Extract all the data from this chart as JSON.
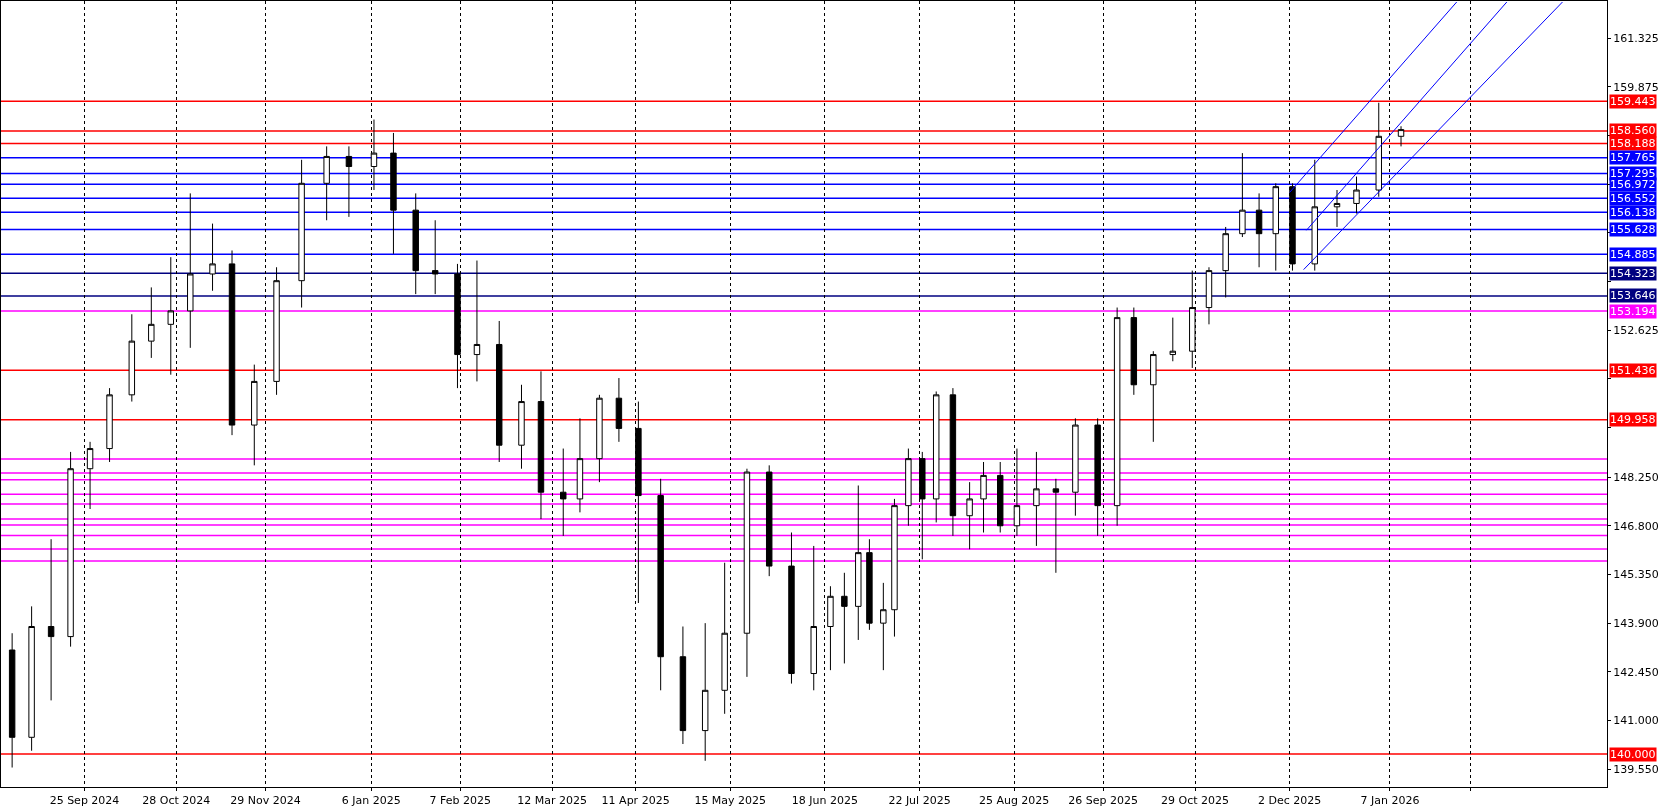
{
  "chart_data": {
    "type": "candlestick",
    "x": [
      "2024-08-30",
      "2024-09-06",
      "2024-09-13",
      "2024-09-20",
      "2024-09-27",
      "2024-10-04",
      "2024-10-12",
      "2024-10-19",
      "2024-10-26",
      "2024-11-02",
      "2024-11-10",
      "2024-11-17",
      "2024-11-25",
      "2024-12-03",
      "2024-12-12",
      "2024-12-21",
      "2024-12-29",
      "2025-01-07",
      "2025-01-14",
      "2025-01-22",
      "2025-01-29",
      "2025-02-06",
      "2025-02-13",
      "2025-02-21",
      "2025-03-01",
      "2025-03-08",
      "2025-03-16",
      "2025-03-22",
      "2025-03-29",
      "2025-04-05",
      "2025-04-12",
      "2025-04-20",
      "2025-04-28",
      "2025-05-06",
      "2025-05-13",
      "2025-05-21",
      "2025-05-29",
      "2025-06-06",
      "2025-06-14",
      "2025-06-20",
      "2025-06-25",
      "2025-06-30",
      "2025-07-04",
      "2025-07-09",
      "2025-07-13",
      "2025-07-18",
      "2025-07-23",
      "2025-07-28",
      "2025-08-03",
      "2025-08-09",
      "2025-08-14",
      "2025-08-20",
      "2025-08-26",
      "2025-09-02",
      "2025-09-09",
      "2025-09-16",
      "2025-09-24",
      "2025-10-01",
      "2025-10-07",
      "2025-10-14",
      "2025-10-21",
      "2025-10-28",
      "2025-11-03",
      "2025-11-09",
      "2025-11-15",
      "2025-11-21",
      "2025-11-27",
      "2025-12-03",
      "2025-12-11",
      "2025-12-19",
      "2025-12-26",
      "2026-01-03",
      "2026-01-11"
    ],
    "ohlc": [
      [
        143.1,
        143.6,
        139.6,
        140.5
      ],
      [
        140.5,
        144.4,
        140.1,
        143.8
      ],
      [
        143.8,
        146.4,
        141.6,
        143.5
      ],
      [
        143.5,
        149.0,
        143.2,
        148.5
      ],
      [
        148.5,
        149.3,
        147.3,
        149.1
      ],
      [
        149.1,
        150.9,
        148.7,
        150.7
      ],
      [
        150.7,
        153.1,
        150.5,
        152.3
      ],
      [
        152.3,
        153.9,
        151.8,
        152.8
      ],
      [
        152.8,
        154.8,
        151.3,
        153.2
      ],
      [
        153.2,
        156.7,
        152.1,
        154.3
      ],
      [
        154.3,
        155.8,
        153.8,
        154.6
      ],
      [
        154.6,
        155.0,
        149.5,
        149.8
      ],
      [
        149.8,
        151.6,
        148.6,
        151.1
      ],
      [
        151.1,
        154.5,
        150.7,
        154.1
      ],
      [
        154.1,
        157.7,
        153.3,
        157.0
      ],
      [
        157.0,
        158.1,
        155.9,
        157.8
      ],
      [
        157.8,
        158.1,
        156.0,
        157.5
      ],
      [
        157.5,
        158.9,
        156.8,
        157.9
      ],
      [
        157.9,
        158.5,
        154.9,
        156.2
      ],
      [
        156.2,
        156.7,
        153.7,
        154.4
      ],
      [
        154.4,
        155.9,
        153.7,
        154.3
      ],
      [
        154.3,
        154.6,
        150.9,
        151.9
      ],
      [
        151.9,
        154.7,
        151.1,
        152.2
      ],
      [
        152.2,
        152.9,
        148.7,
        149.2
      ],
      [
        149.2,
        151.0,
        148.5,
        150.5
      ],
      [
        150.5,
        151.4,
        147.0,
        147.8
      ],
      [
        147.8,
        149.1,
        146.5,
        147.6
      ],
      [
        147.6,
        150.0,
        147.2,
        148.8
      ],
      [
        148.8,
        150.7,
        148.1,
        150.6
      ],
      [
        150.6,
        151.2,
        149.3,
        149.7
      ],
      [
        149.7,
        150.5,
        144.5,
        147.7
      ],
      [
        147.7,
        148.2,
        141.9,
        142.9
      ],
      [
        142.9,
        143.8,
        140.3,
        140.7
      ],
      [
        140.7,
        143.9,
        139.8,
        141.9
      ],
      [
        141.9,
        145.7,
        141.2,
        143.6
      ],
      [
        143.6,
        148.5,
        142.3,
        148.4
      ],
      [
        148.4,
        148.6,
        145.3,
        145.6
      ],
      [
        145.6,
        146.6,
        142.1,
        142.4
      ],
      [
        142.4,
        146.2,
        141.9,
        143.8
      ],
      [
        143.8,
        145.0,
        142.5,
        144.7
      ],
      [
        144.7,
        145.4,
        142.7,
        144.4
      ],
      [
        144.4,
        148.0,
        143.4,
        146.0
      ],
      [
        146.0,
        146.4,
        143.7,
        143.9
      ],
      [
        143.9,
        145.1,
        142.5,
        144.3
      ],
      [
        144.3,
        147.6,
        143.5,
        147.4
      ],
      [
        147.4,
        149.1,
        146.8,
        148.8
      ],
      [
        148.8,
        149.0,
        145.8,
        147.6
      ],
      [
        147.6,
        150.8,
        146.9,
        150.7
      ],
      [
        150.7,
        150.9,
        146.5,
        147.1
      ],
      [
        147.1,
        148.1,
        146.1,
        147.6
      ],
      [
        147.6,
        148.7,
        146.6,
        148.3
      ],
      [
        148.3,
        148.7,
        146.6,
        146.8
      ],
      [
        146.8,
        149.1,
        146.5,
        147.4
      ],
      [
        147.4,
        149.0,
        146.2,
        147.9
      ],
      [
        147.9,
        148.2,
        145.4,
        147.8
      ],
      [
        147.8,
        150.0,
        147.1,
        149.8
      ],
      [
        149.8,
        150.0,
        146.5,
        147.4
      ],
      [
        147.4,
        153.3,
        146.8,
        153.0
      ],
      [
        153.0,
        153.3,
        150.7,
        151.0
      ],
      [
        151.0,
        152.0,
        149.3,
        151.9
      ],
      [
        151.9,
        153.0,
        151.7,
        152.0
      ],
      [
        152.0,
        154.4,
        151.5,
        153.3
      ],
      [
        153.3,
        154.5,
        152.8,
        154.4
      ],
      [
        154.4,
        155.7,
        153.6,
        155.5
      ],
      [
        155.5,
        157.9,
        155.4,
        156.2
      ],
      [
        156.2,
        156.7,
        154.5,
        155.5
      ],
      [
        155.5,
        157.0,
        154.4,
        156.9
      ],
      [
        156.9,
        157.0,
        154.4,
        154.6
      ],
      [
        154.6,
        157.7,
        154.4,
        156.3
      ],
      [
        156.3,
        156.8,
        155.7,
        156.4
      ],
      [
        156.4,
        157.2,
        156.1,
        156.8
      ],
      [
        156.8,
        159.4,
        156.6,
        158.4
      ],
      [
        158.4,
        158.7,
        158.1,
        158.6
      ]
    ],
    "series": [
      {
        "type": "line",
        "color": "#0000ff",
        "x": [
          "2025-12-02",
          "2026-01-31"
        ],
        "values": [
          156.73,
          162.4
        ]
      },
      {
        "type": "line",
        "color": "#0000ff",
        "x": [
          "2025-12-08",
          "2026-02-18"
        ],
        "values": [
          155.6,
          162.4
        ]
      },
      {
        "type": "line",
        "color": "#0000ff",
        "x": [
          "2025-12-07",
          "2026-03-10"
        ],
        "values": [
          154.43,
          162.4
        ]
      }
    ],
    "xlim": [
      "2024-08-26",
      "2026-03-26"
    ],
    "xticks": [
      {
        "value": "2024-09-25",
        "label": "25 Sep 2024"
      },
      {
        "value": "2024-10-28",
        "label": "28 Oct 2024"
      },
      {
        "value": "2024-11-29",
        "label": "29 Nov 2024"
      },
      {
        "value": "2025-01-06",
        "label": "6 Jan 2025"
      },
      {
        "value": "2025-02-07",
        "label": "7 Feb 2025"
      },
      {
        "value": "2025-03-12",
        "label": "12 Mar 2025"
      },
      {
        "value": "2025-04-11",
        "label": "11 Apr 2025"
      },
      {
        "value": "2025-05-15",
        "label": "15 May 2025"
      },
      {
        "value": "2025-06-18",
        "label": "18 Jun 2025"
      },
      {
        "value": "2025-07-22",
        "label": "22 Jul 2025"
      },
      {
        "value": "2025-08-25",
        "label": "25 Aug 2025"
      },
      {
        "value": "2025-09-26",
        "label": "26 Sep 2025"
      },
      {
        "value": "2025-10-29",
        "label": "29 Oct 2025"
      },
      {
        "value": "2025-12-02",
        "label": "2 Dec 2025"
      },
      {
        "value": "2026-01-07",
        "label": "7 Jan 2026"
      },
      {
        "value": "2026-02-05",
        "label": null
      }
    ],
    "ylim": [
      139.02,
      162.43
    ],
    "yticks": [
      161.325,
      159.875,
      {
        "value": 158.425,
        "label": null
      },
      {
        "value": 156.975,
        "label": null
      },
      {
        "value": 155.525,
        "label": null
      },
      {
        "value": 154.075,
        "label": null
      },
      152.625,
      {
        "value": 151.175,
        "label": null
      },
      {
        "value": 149.725,
        "label": null
      },
      {
        "value": 148.25,
        "label": "148.250"
      },
      {
        "value": 146.8,
        "label": "146.800"
      },
      {
        "value": 145.35,
        "label": "145.350"
      },
      {
        "value": 143.9,
        "label": "143.900"
      },
      {
        "value": 142.45,
        "label": "142.450"
      },
      {
        "value": 141,
        "label": "141.000"
      },
      {
        "value": 139.55,
        "label": "139.550"
      }
    ],
    "ref_lines": [
      {
        "axis": "y",
        "value": 159.443,
        "label": "159.443",
        "color": "#ff0000"
      },
      {
        "axis": "y",
        "value": 158.56,
        "label": "158.560",
        "color": "#ff0000"
      },
      {
        "axis": "y",
        "value": 158.188,
        "label": "158.188",
        "color": "#ff0000"
      },
      {
        "axis": "y",
        "value": 157.765,
        "label": "157.765",
        "color": "#0000ff"
      },
      {
        "axis": "y",
        "value": 157.295,
        "label": "157.295",
        "color": "#0000ff"
      },
      {
        "axis": "y",
        "value": 156.972,
        "label": "156.972",
        "color": "#0000ff"
      },
      {
        "axis": "y",
        "value": 156.552,
        "label": "156.552",
        "color": "#0000ff"
      },
      {
        "axis": "y",
        "value": 156.138,
        "label": "156.138",
        "color": "#0000ff"
      },
      {
        "axis": "y",
        "value": 155.628,
        "label": "155.628",
        "color": "#0000ff"
      },
      {
        "axis": "y",
        "value": 154.885,
        "label": "154.885",
        "color": "#0000ff"
      },
      {
        "axis": "y",
        "value": 154.323,
        "label": "154.323",
        "color": "#000080"
      },
      {
        "axis": "y",
        "value": 153.646,
        "label": "153.646",
        "color": "#000080"
      },
      {
        "axis": "y",
        "value": 153.194,
        "label": "153.194",
        "color": "#ff00ff"
      },
      {
        "axis": "y",
        "value": 151.436,
        "label": "151.436",
        "color": "#ff0000"
      },
      {
        "axis": "y",
        "value": 149.958,
        "label": "149.958",
        "color": "#ff0000"
      },
      {
        "axis": "y",
        "value": 148.79,
        "label": null,
        "color": "#ff00ff"
      },
      {
        "axis": "y",
        "value": 148.37,
        "label": null,
        "color": "#ff00ff"
      },
      {
        "axis": "y",
        "value": 148.17,
        "label": null,
        "color": "#ff00ff"
      },
      {
        "axis": "y",
        "value": 147.74,
        "label": null,
        "color": "#ff00ff"
      },
      {
        "axis": "y",
        "value": 147.45,
        "label": null,
        "color": "#ff00ff"
      },
      {
        "axis": "y",
        "value": 147.0,
        "label": null,
        "color": "#ff00ff"
      },
      {
        "axis": "y",
        "value": 146.82,
        "label": null,
        "color": "#ff00ff"
      },
      {
        "axis": "y",
        "value": 146.51,
        "label": null,
        "color": "#ff00ff"
      },
      {
        "axis": "y",
        "value": 146.11,
        "label": null,
        "color": "#ff00ff"
      },
      {
        "axis": "y",
        "value": 145.75,
        "label": null,
        "color": "#ff00ff"
      },
      {
        "axis": "y",
        "value": 140.0,
        "label": "140.000",
        "color": "#ff0000"
      }
    ],
    "grid": "x"
  }
}
